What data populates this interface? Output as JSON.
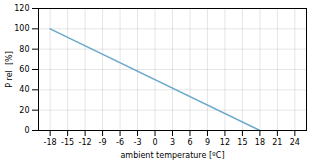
{
  "chart_data": {
    "type": "line",
    "x": [
      -18,
      18
    ],
    "values": [
      100,
      0
    ],
    "color": "#6aa8cc",
    "xlabel": "ambient temperature [ºC]",
    "ylabel": "P rel  [%]",
    "xlim": [
      -20,
      26
    ],
    "ylim": [
      0,
      120
    ],
    "xticks": [
      -18,
      -15,
      -12,
      -9,
      -6,
      -3,
      0,
      3,
      6,
      9,
      12,
      15,
      18,
      21,
      24
    ],
    "yticks": [
      0,
      20,
      40,
      60,
      80,
      100,
      120
    ],
    "grid": true
  }
}
